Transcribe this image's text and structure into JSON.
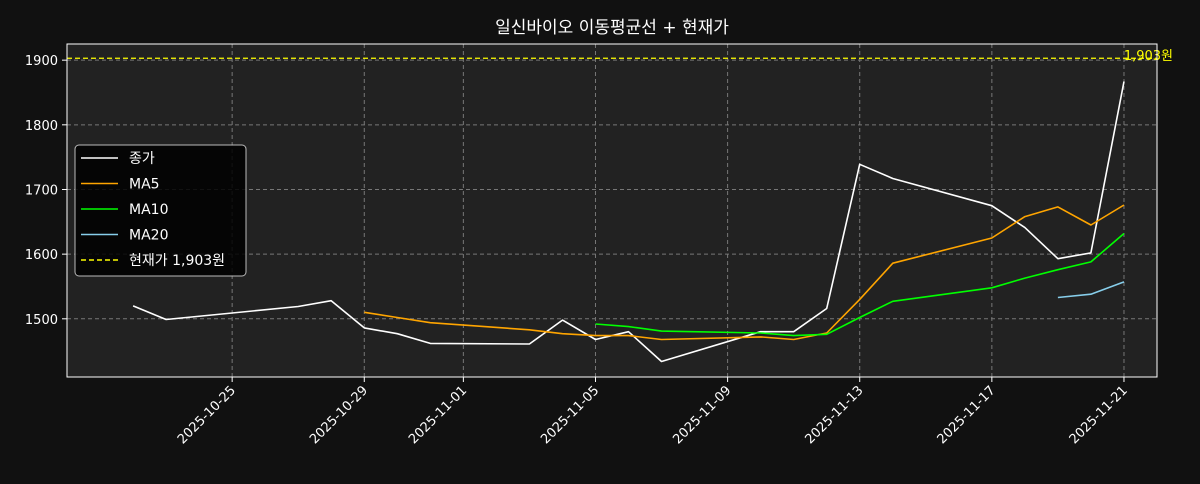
{
  "chart_data": {
    "type": "line",
    "title": "일신바이오 이동평균선 + 현재가",
    "xlabel": "",
    "ylabel": "",
    "x_ticks": [
      "2025-10-25",
      "2025-10-29",
      "2025-11-01",
      "2025-11-05",
      "2025-11-09",
      "2025-11-13",
      "2025-11-17",
      "2025-11-21"
    ],
    "y_ticks": [
      1500,
      1600,
      1700,
      1800,
      1900
    ],
    "xlim": [
      "2025-10-20",
      "2025-11-22"
    ],
    "ylim": [
      1410,
      1925
    ],
    "grid": true,
    "legend_position": "center-left",
    "colors": {
      "figure_bg": "#111111",
      "axes_bg": "#222222",
      "text": "#ffffff",
      "grid": "#777777",
      "price": "#ffff00"
    },
    "series": [
      {
        "name": "종가",
        "color": "#ffffff",
        "points": [
          [
            "2025-10-22",
            1520
          ],
          [
            "2025-10-23",
            1499
          ],
          [
            "2025-10-27",
            1519
          ],
          [
            "2025-10-28",
            1528
          ],
          [
            "2025-10-29",
            1486
          ],
          [
            "2025-10-30",
            1477
          ],
          [
            "2025-10-31",
            1462
          ],
          [
            "2025-11-03",
            1461
          ],
          [
            "2025-11-04",
            1498
          ],
          [
            "2025-11-05",
            1468
          ],
          [
            "2025-11-06",
            1480
          ],
          [
            "2025-11-07",
            1434
          ],
          [
            "2025-11-10",
            1480
          ],
          [
            "2025-11-11",
            1480
          ],
          [
            "2025-11-12",
            1516
          ],
          [
            "2025-11-13",
            1739
          ],
          [
            "2025-11-14",
            1717
          ],
          [
            "2025-11-17",
            1675
          ],
          [
            "2025-11-18",
            1641
          ],
          [
            "2025-11-19",
            1593
          ],
          [
            "2025-11-20",
            1602
          ],
          [
            "2025-11-21",
            1867
          ]
        ]
      },
      {
        "name": "MA5",
        "color": "#ffa500",
        "points": [
          [
            "2025-10-29",
            1510
          ],
          [
            "2025-10-30",
            1502
          ],
          [
            "2025-10-31",
            1494
          ],
          [
            "2025-11-03",
            1483
          ],
          [
            "2025-11-04",
            1477
          ],
          [
            "2025-11-05",
            1474
          ],
          [
            "2025-11-06",
            1474
          ],
          [
            "2025-11-07",
            1468
          ],
          [
            "2025-11-10",
            1472
          ],
          [
            "2025-11-11",
            1468
          ],
          [
            "2025-11-12",
            1478
          ],
          [
            "2025-11-13",
            1530
          ],
          [
            "2025-11-14",
            1586
          ],
          [
            "2025-11-17",
            1625
          ],
          [
            "2025-11-18",
            1658
          ],
          [
            "2025-11-19",
            1673
          ],
          [
            "2025-11-20",
            1645
          ],
          [
            "2025-11-21",
            1676
          ]
        ]
      },
      {
        "name": "MA10",
        "color": "#00ff00",
        "points": [
          [
            "2025-11-05",
            1492
          ],
          [
            "2025-11-06",
            1488
          ],
          [
            "2025-11-07",
            1481
          ],
          [
            "2025-11-10",
            1478
          ],
          [
            "2025-11-11",
            1474
          ],
          [
            "2025-11-12",
            1476
          ],
          [
            "2025-11-13",
            1502
          ],
          [
            "2025-11-14",
            1527
          ],
          [
            "2025-11-17",
            1548
          ],
          [
            "2025-11-18",
            1563
          ],
          [
            "2025-11-19",
            1576
          ],
          [
            "2025-11-20",
            1588
          ],
          [
            "2025-11-21",
            1632
          ]
        ]
      },
      {
        "name": "MA20",
        "color": "#87ceeb",
        "points": [
          [
            "2025-11-19",
            1533
          ],
          [
            "2025-11-20",
            1538
          ],
          [
            "2025-11-21",
            1557
          ]
        ]
      }
    ],
    "current_price": {
      "value": 1903,
      "label": "1,903원",
      "legend_label": "현재가 1,903원"
    }
  }
}
